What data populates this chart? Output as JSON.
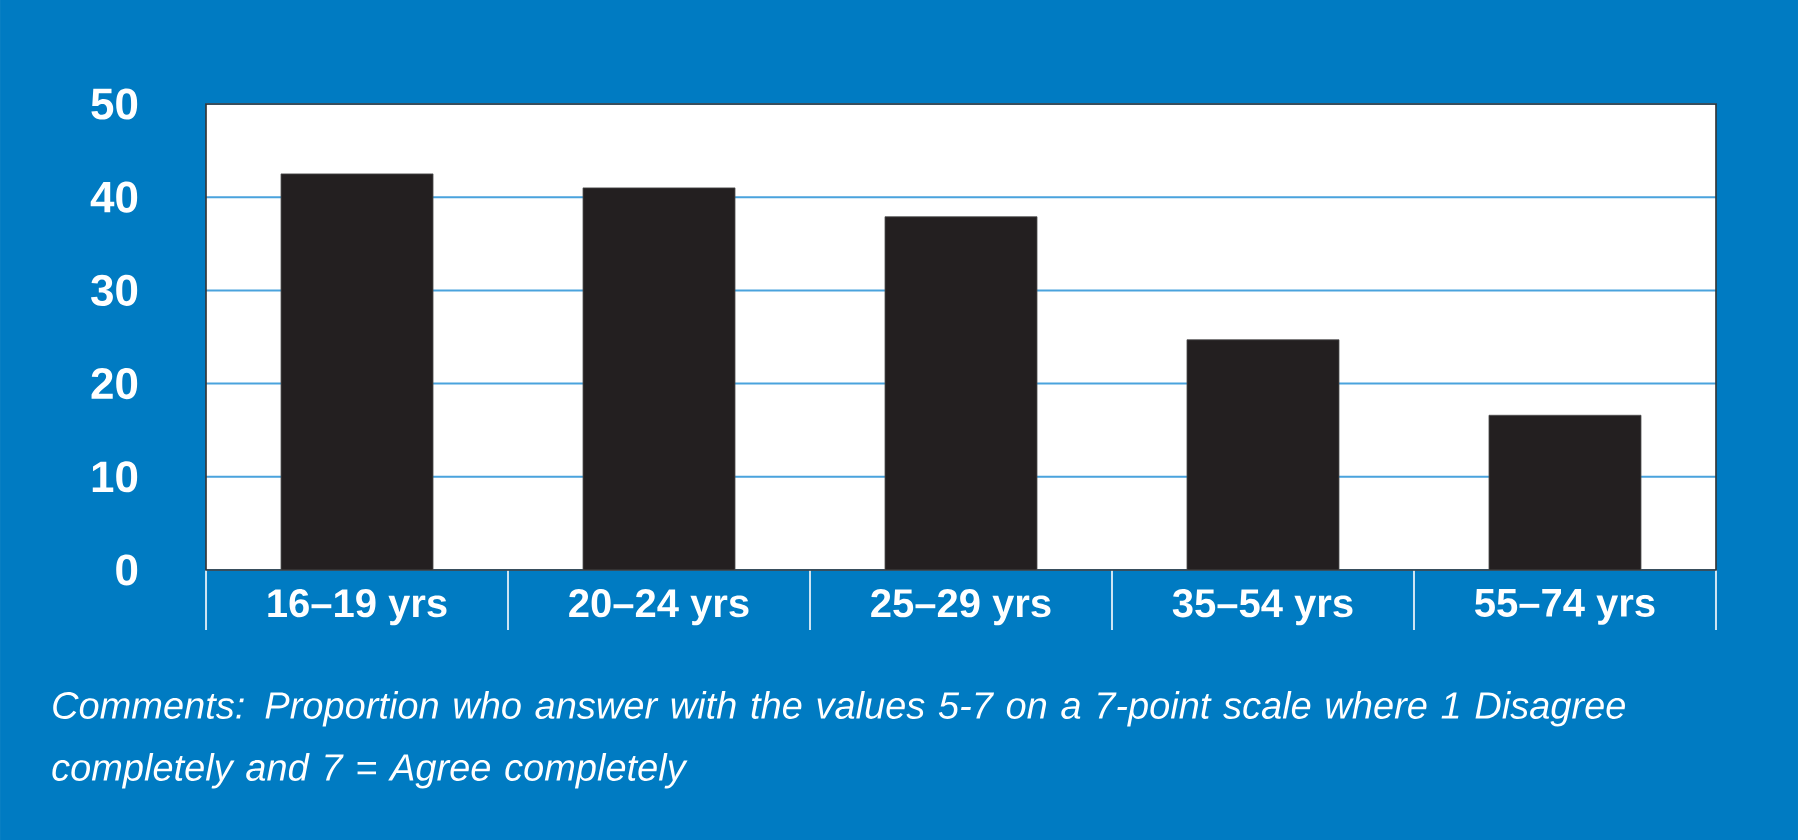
{
  "chart_data": {
    "type": "bar",
    "categories": [
      "16–19 yrs",
      "20–24 yrs",
      "25–29 yrs",
      "35–54 yrs",
      "55–74 yrs"
    ],
    "values": [
      42.5,
      41.0,
      37.9,
      24.7,
      16.6
    ],
    "color": "#231f20",
    "ylim": [
      0,
      50
    ],
    "yticks": [
      0,
      10,
      20,
      30,
      40,
      50
    ],
    "grid": "y",
    "annotations": [
      "Comments: Proportion who answer with the values 5-7 on a 7-point scale where 1 Disagree completely and 7 = Agree completely"
    ]
  }
}
